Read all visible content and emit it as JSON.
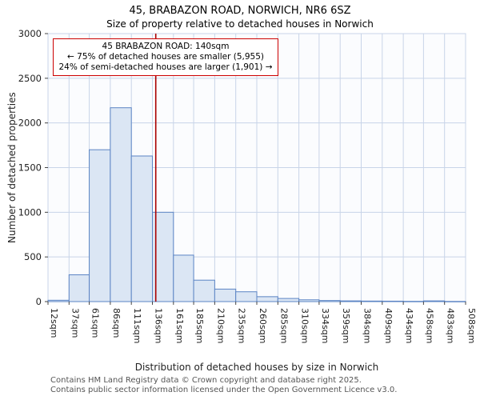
{
  "title": "45, BRABAZON ROAD, NORWICH, NR6 6SZ",
  "subtitle": "Size of property relative to detached houses in Norwich",
  "annotation": {
    "line1": "45 BRABAZON ROAD: 140sqm",
    "line2": "← 75% of detached houses are smaller (5,955)",
    "line3": "24% of semi-detached houses are larger (1,901) →"
  },
  "footer": {
    "line1": "Contains HM Land Registry data © Crown copyright and database right 2025.",
    "line2": "Contains public sector information licensed under the Open Government Licence v3.0."
  },
  "chart_data": {
    "type": "bar",
    "title": "45, BRABAZON ROAD, NORWICH, NR6 6SZ",
    "subtitle": "Size of property relative to detached houses in Norwich",
    "xlabel": "Distribution of detached houses by size in Norwich",
    "ylabel": "Number of detached properties",
    "xlim": [
      12,
      508
    ],
    "ylim": [
      0,
      3000
    ],
    "yticks": [
      0,
      500,
      1000,
      1500,
      2000,
      2500,
      3000
    ],
    "bin_edges_sqm": [
      12,
      37,
      61,
      86,
      111,
      136,
      161,
      185,
      210,
      235,
      260,
      285,
      310,
      334,
      359,
      384,
      409,
      434,
      458,
      483,
      508
    ],
    "tick_labels": [
      "12sqm",
      "37sqm",
      "61sqm",
      "86sqm",
      "111sqm",
      "136sqm",
      "161sqm",
      "185sqm",
      "210sqm",
      "235sqm",
      "260sqm",
      "285sqm",
      "310sqm",
      "334sqm",
      "359sqm",
      "384sqm",
      "409sqm",
      "434sqm",
      "458sqm",
      "483sqm",
      "508sqm"
    ],
    "values": [
      15,
      300,
      1700,
      2170,
      1630,
      1000,
      520,
      240,
      140,
      110,
      55,
      35,
      20,
      12,
      8,
      6,
      5,
      3,
      8,
      2
    ],
    "marker_sqm": 140,
    "marker_label": "140sqm",
    "grid": true,
    "legend": "none",
    "plot_bg": "#fbfcfe",
    "grid_color": "#c8d4e8",
    "bar_fill": "#dbe6f4",
    "bar_stroke": "#5b84c4",
    "marker_color": "#aa0000",
    "tick_color": "#222222"
  }
}
